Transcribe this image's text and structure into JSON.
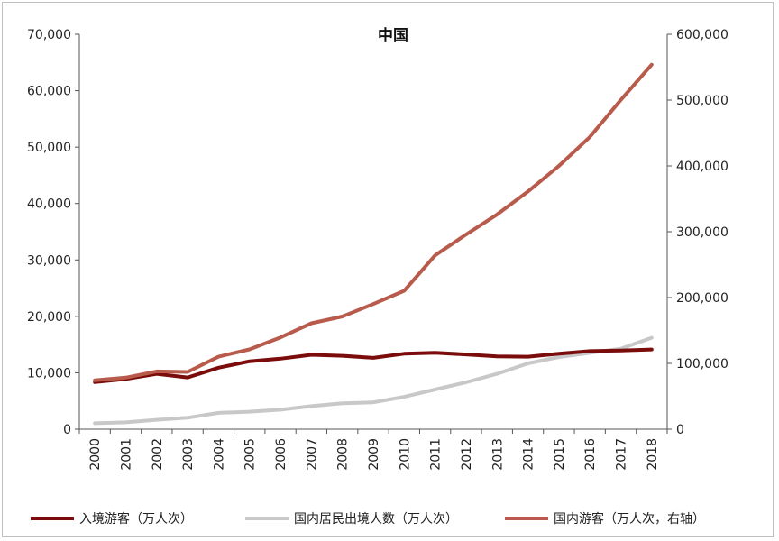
{
  "chart_data": {
    "type": "line",
    "title": "中国",
    "categories": [
      "2000",
      "2001",
      "2002",
      "2003",
      "2004",
      "2005",
      "2006",
      "2007",
      "2008",
      "2009",
      "2010",
      "2011",
      "2012",
      "2013",
      "2014",
      "2015",
      "2016",
      "2017",
      "2018"
    ],
    "left_axis": {
      "ylim": [
        0,
        70000
      ],
      "ticks": [
        "0",
        "10,000",
        "20,000",
        "30,000",
        "40,000",
        "50,000",
        "60,000",
        "70,000"
      ]
    },
    "right_axis": {
      "ylim": [
        0,
        600000
      ],
      "ticks": [
        "0",
        "100,000",
        "200,000",
        "300,000",
        "400,000",
        "500,000",
        "600,000"
      ]
    },
    "series": [
      {
        "name": "入境游客（万人次）",
        "axis": "left",
        "color": "#7b0c0c",
        "values": [
          8344,
          8901,
          9791,
          9166,
          10904,
          12029,
          12494,
          13187,
          13003,
          12648,
          13376,
          13542,
          13241,
          12908,
          12850,
          13382,
          13844,
          13948,
          14120
        ]
      },
      {
        "name": "国内居民出境人数（万人次）",
        "axis": "left",
        "color": "#c8c8c8",
        "values": [
          1047,
          1213,
          1660,
          2022,
          2885,
          3103,
          3452,
          4095,
          4584,
          4766,
          5739,
          7025,
          8318,
          9819,
          11659,
          12786,
          13513,
          14273,
          16199
        ]
      },
      {
        "name": "国内游客（万人次，右轴）",
        "axis": "right",
        "color": "#b85a4c",
        "values": [
          74400,
          78400,
          87800,
          87000,
          110200,
          121200,
          139400,
          161000,
          171200,
          190200,
          210300,
          264100,
          295700,
          326200,
          361100,
          400000,
          444000,
          500100,
          553900
        ]
      }
    ],
    "legend_position": "bottom"
  }
}
